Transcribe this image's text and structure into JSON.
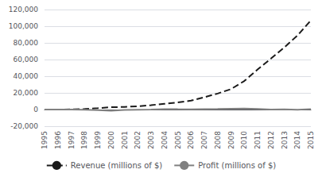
{
  "chart_data": {
    "type": "line",
    "categories": [
      "1995",
      "1996",
      "1997",
      "1998",
      "1999",
      "2000",
      "2001",
      "2002",
      "2003",
      "2004",
      "2005",
      "2006",
      "2007",
      "2008",
      "2009",
      "2010",
      "2011",
      "2012",
      "2013",
      "2014",
      "2015"
    ],
    "series": [
      {
        "name": "Revenue (millions of $)",
        "color": "#1a1a1a",
        "line_style": "dashed",
        "values": [
          0.511,
          15.746,
          147.787,
          609.996,
          1639.839,
          2761.983,
          3122.433,
          3932.936,
          5263.699,
          6921.124,
          8490.383,
          10711.0,
          14835.0,
          19166.0,
          24509.0,
          34204.0,
          48077.0,
          61093.0,
          74452.0,
          88988.0,
          107006.0
        ]
      },
      {
        "name": "Profit (millions of $)",
        "color": "#808080",
        "line_style": "solid",
        "values": [
          0.0,
          -5.777,
          -31.02,
          -124.546,
          -719.968,
          -1411.273,
          -567.277,
          -149.132,
          35.282,
          588.451,
          359.0,
          190.0,
          476.0,
          645.0,
          902.0,
          1152.0,
          631.0,
          -39.0,
          274.0,
          -241.0,
          596.0
        ]
      }
    ],
    "ylim": [
      -20000,
      120000
    ],
    "yticks": [
      {
        "value": -20000,
        "label": "-20,000"
      },
      0,
      {
        "value": 20000,
        "label": "20,000"
      },
      {
        "value": 40000,
        "label": "40,000"
      },
      {
        "value": 60000,
        "label": "60,000"
      },
      {
        "value": 80000,
        "label": "80,000"
      },
      {
        "value": 100000,
        "label": "100,000"
      },
      {
        "value": 120000,
        "label": "120,000"
      }
    ],
    "grid": true,
    "legend": "bottom"
  }
}
